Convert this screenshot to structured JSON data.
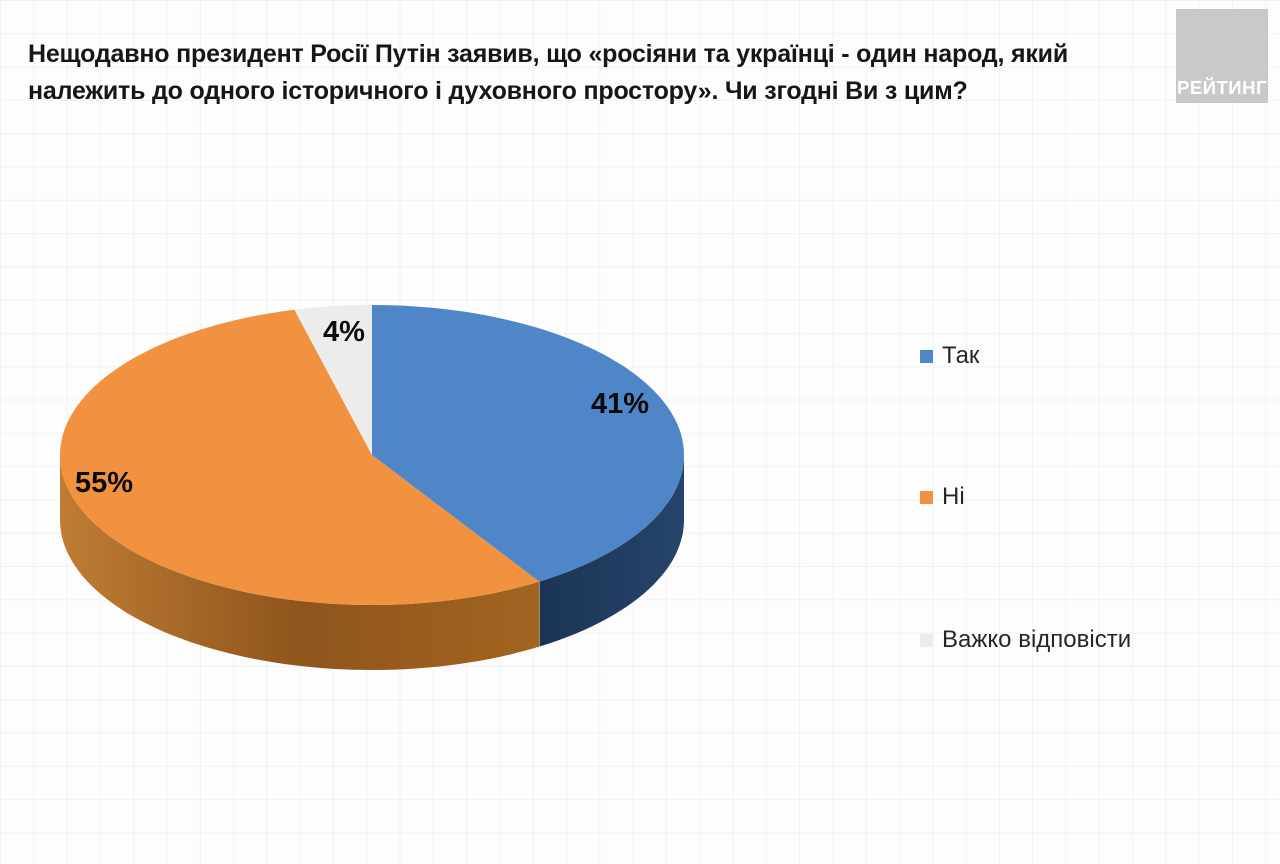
{
  "page": {
    "branding": "РЕЙТИНГ"
  },
  "chart_data": {
    "type": "pie",
    "style": "3d",
    "title": "Нещодавно президент Росії Путін заявив, що «росіяни та українці - один народ, який належить до одного історичного і духовного простору». Чи згодні Ви з цим?",
    "title_lines": [
      "Нещодавно президент Росії Путін заявив, що «росіяни та українці - один народ, який",
      "належить до одного історичного і духовного простору». Чи згодні Ви з цим?"
    ],
    "labels": [
      "Так",
      "Ні",
      "Важко відповісти"
    ],
    "values": [
      41,
      55,
      4
    ],
    "value_labels": [
      "41%",
      "55%",
      "4%"
    ],
    "colors": [
      "#4e86c8",
      "#f0923f",
      "#ececea"
    ],
    "side_colors_dark": [
      "#1b3454",
      "#8f551b",
      "#bdbdbd"
    ],
    "legend_position": "right",
    "data_labels_on": true
  }
}
